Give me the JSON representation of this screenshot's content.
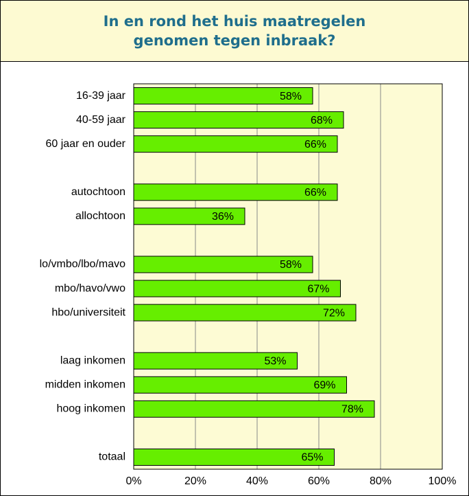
{
  "chart_data": {
    "type": "bar",
    "orientation": "horizontal",
    "title": "In en rond het huis maatregelen genomen tegen inbraak?",
    "categories": [
      "16-39 jaar",
      "40-59 jaar",
      "60 jaar en ouder",
      null,
      "autochtoon",
      "allochtoon",
      null,
      "lo/vmbo/lbo/mavo",
      "mbo/havo/vwo",
      "hbo/universiteit",
      null,
      "laag inkomen",
      "midden inkomen",
      "hoog inkomen",
      null,
      "totaal"
    ],
    "values": [
      58,
      68,
      66,
      null,
      66,
      36,
      null,
      58,
      67,
      72,
      null,
      53,
      69,
      78,
      null,
      65
    ],
    "value_labels": [
      "58%",
      "68%",
      "66%",
      null,
      "66%",
      "36%",
      null,
      "58%",
      "67%",
      "72%",
      null,
      "53%",
      "69%",
      "78%",
      null,
      "65%"
    ],
    "color": "#66ee00",
    "xlim": [
      0,
      100
    ],
    "xticks": [
      {
        "value": 0,
        "label": "0%"
      },
      {
        "value": 20,
        "label": "20%"
      },
      {
        "value": 40,
        "label": "40%"
      },
      {
        "value": 60,
        "label": "60%"
      },
      {
        "value": 80,
        "label": "80%"
      },
      {
        "value": 100,
        "label": "100%"
      }
    ],
    "grid": true
  }
}
